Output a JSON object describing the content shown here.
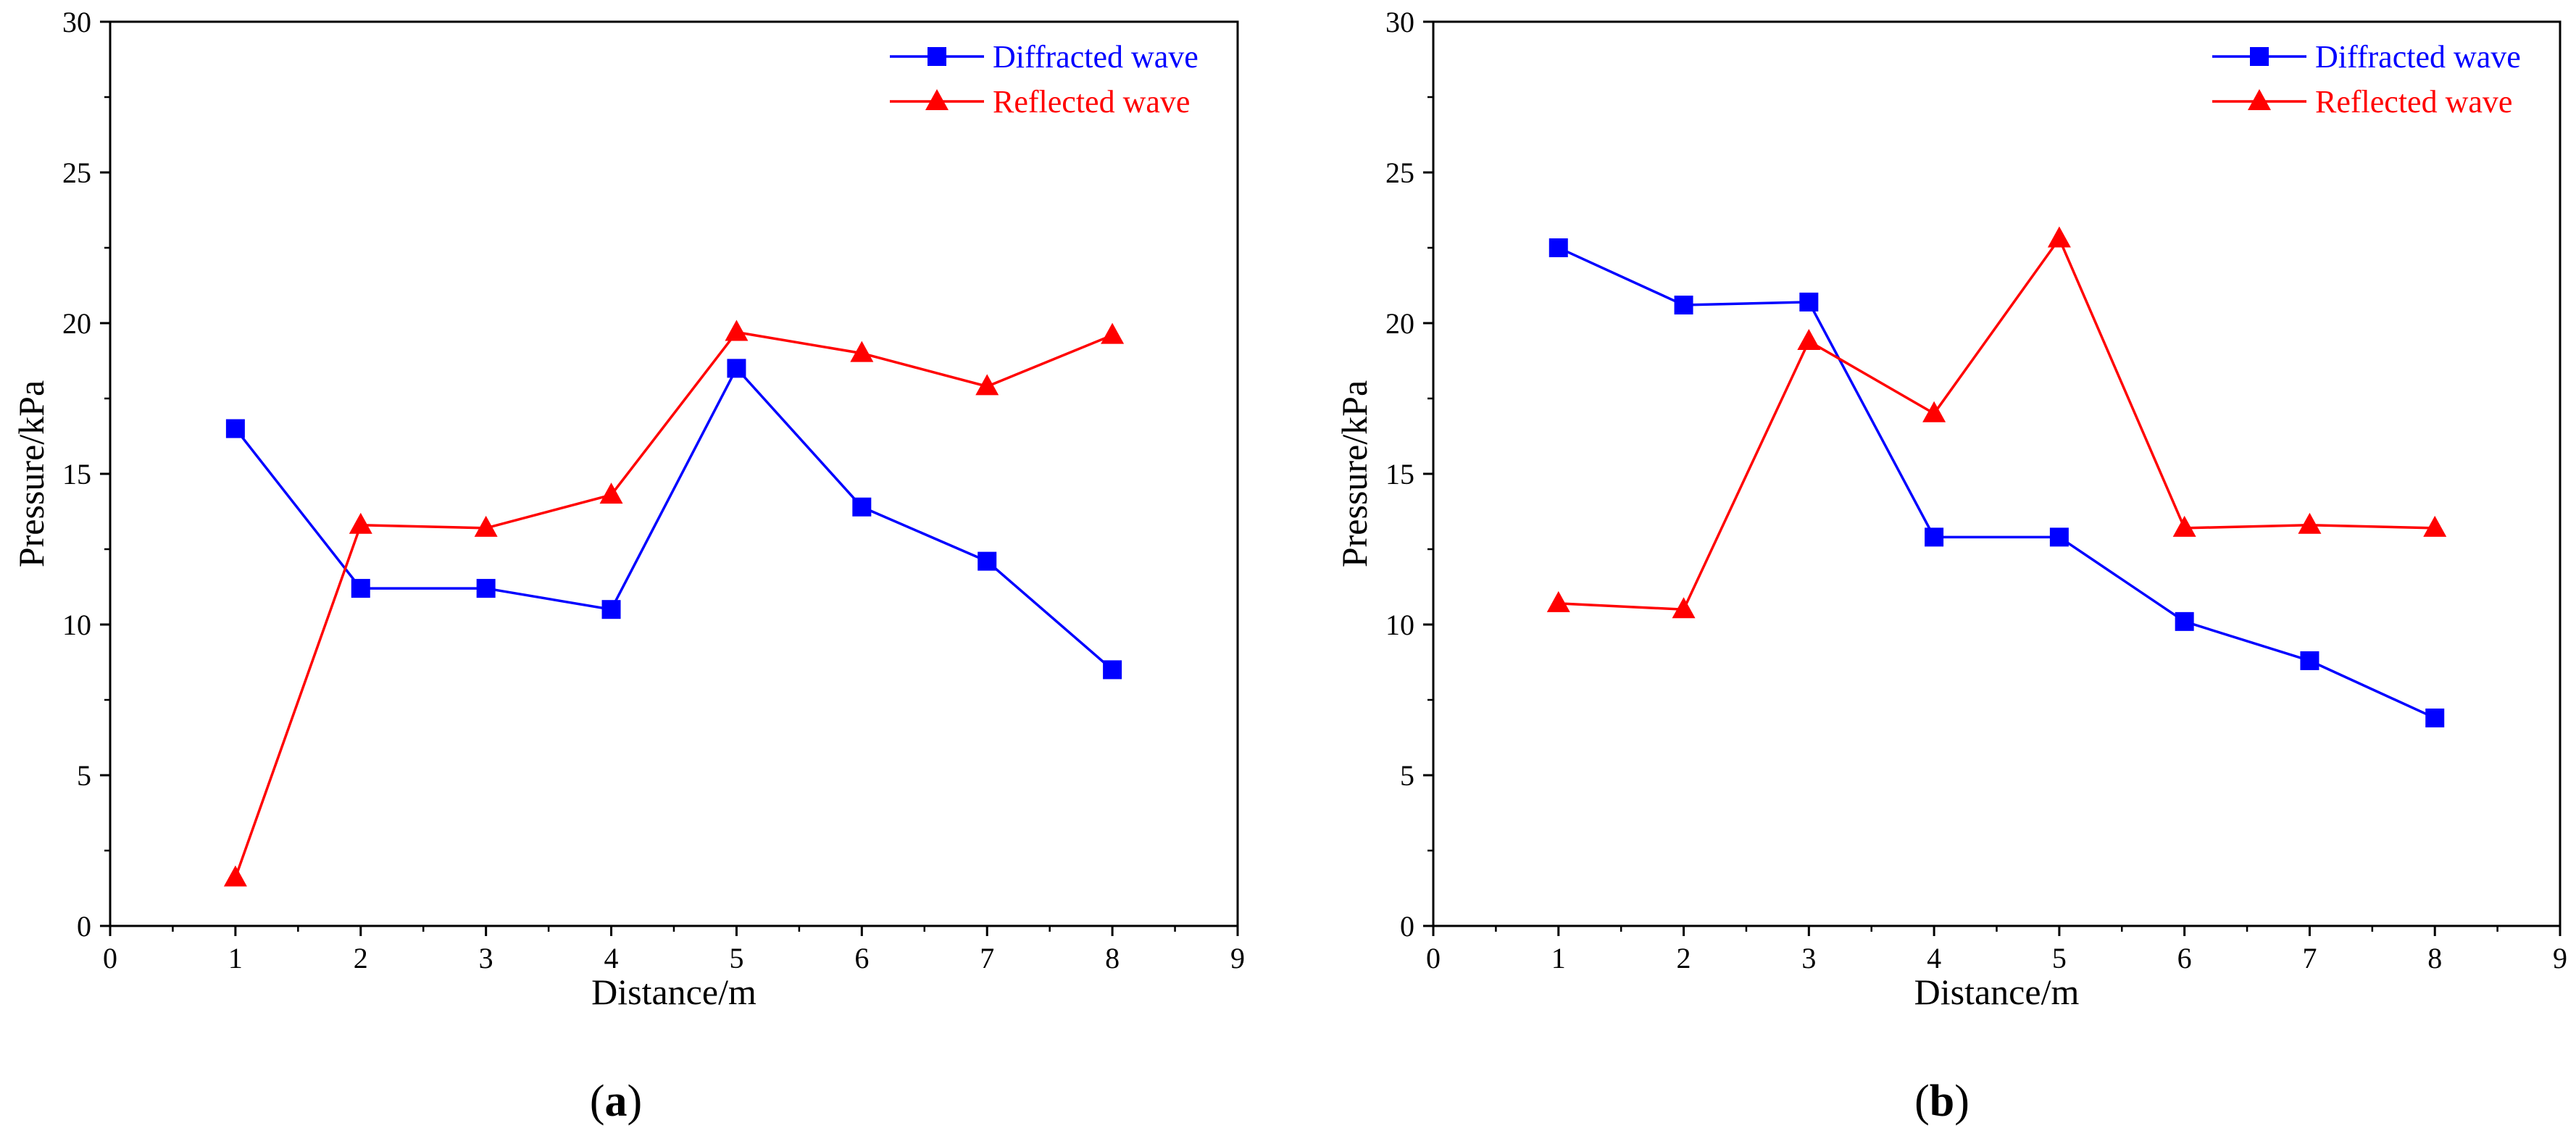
{
  "chart_data": [
    {
      "type": "line",
      "panel_label": "a",
      "title": "",
      "xlabel": "Distance/m",
      "ylabel": "Pressure/kPa",
      "xlim": [
        0,
        9
      ],
      "ylim": [
        0,
        30
      ],
      "xticks": [
        0,
        1,
        2,
        3,
        4,
        5,
        6,
        7,
        8,
        9
      ],
      "yticks": [
        0,
        5,
        10,
        15,
        20,
        25,
        30
      ],
      "grid": false,
      "legend_position": "top-right",
      "x": [
        1,
        2,
        3,
        4,
        5,
        6,
        7,
        8
      ],
      "series": [
        {
          "name": "Diffracted wave",
          "color": "#0000ff",
          "marker": "square",
          "values": [
            16.5,
            11.2,
            11.2,
            10.5,
            18.5,
            13.9,
            12.1,
            8.5
          ]
        },
        {
          "name": "Reflected wave",
          "color": "#ff0000",
          "marker": "triangle",
          "values": [
            1.6,
            13.3,
            13.2,
            14.3,
            19.7,
            19.0,
            17.9,
            19.6
          ]
        }
      ]
    },
    {
      "type": "line",
      "panel_label": "b",
      "title": "",
      "xlabel": "Distance/m",
      "ylabel": "Pressure/kPa",
      "xlim": [
        0,
        9
      ],
      "ylim": [
        0,
        30
      ],
      "xticks": [
        0,
        1,
        2,
        3,
        4,
        5,
        6,
        7,
        8,
        9
      ],
      "yticks": [
        0,
        5,
        10,
        15,
        20,
        25,
        30
      ],
      "grid": false,
      "legend_position": "top-right",
      "x": [
        1,
        2,
        3,
        4,
        5,
        6,
        7,
        8
      ],
      "series": [
        {
          "name": "Diffracted wave",
          "color": "#0000ff",
          "marker": "square",
          "values": [
            22.5,
            20.6,
            20.7,
            12.9,
            12.9,
            10.1,
            8.8,
            6.9
          ]
        },
        {
          "name": "Reflected wave",
          "color": "#ff0000",
          "marker": "triangle",
          "values": [
            10.7,
            10.5,
            19.4,
            17.0,
            22.8,
            13.2,
            13.3,
            13.2
          ]
        }
      ]
    }
  ]
}
